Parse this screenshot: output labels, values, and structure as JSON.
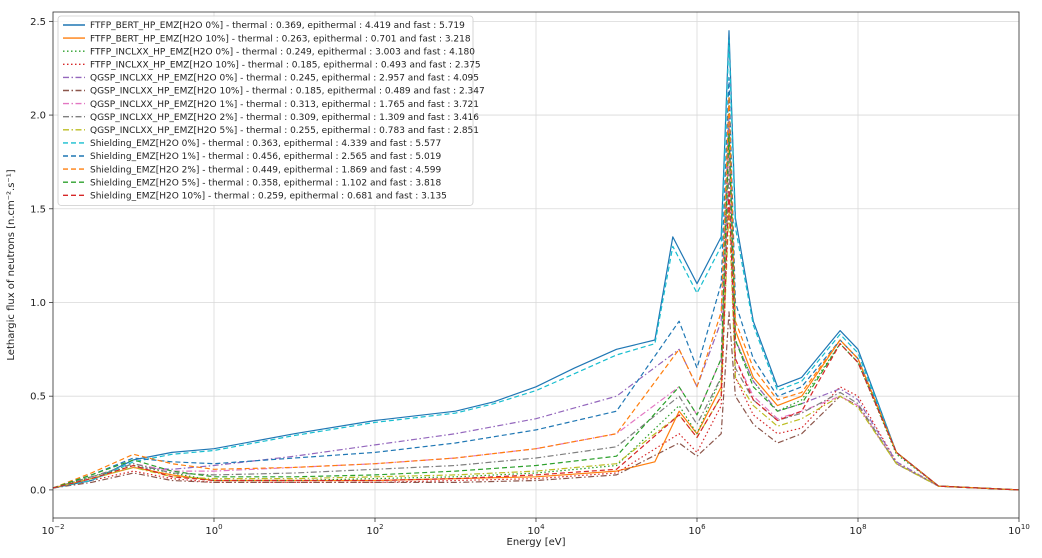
{
  "chart_data": {
    "type": "line",
    "xlabel": "Energy [eV]",
    "ylabel": "Lethargic flux of neutrons [n.cm⁻².s⁻¹]",
    "xscale": "log",
    "xlim": [
      0.01,
      10000000000
    ],
    "ylim": [
      -0.15,
      2.55
    ],
    "grid": true,
    "legend_position": "top-left",
    "x_ticks": [
      {
        "value": 0.01,
        "base": "10",
        "exp": "−2"
      },
      {
        "value": 1,
        "base": "10",
        "exp": "0"
      },
      {
        "value": 100,
        "base": "10",
        "exp": "2"
      },
      {
        "value": 10000,
        "base": "10",
        "exp": "4"
      },
      {
        "value": 1000000,
        "base": "10",
        "exp": "6"
      },
      {
        "value": 100000000,
        "base": "10",
        "exp": "8"
      },
      {
        "value": 10000000000,
        "base": "10",
        "exp": "10"
      }
    ],
    "y_ticks": [
      {
        "value": 0.0,
        "label": "0.0"
      },
      {
        "value": 0.5,
        "label": "0.5"
      },
      {
        "value": 1.0,
        "label": "1.0"
      },
      {
        "value": 1.5,
        "label": "1.5"
      },
      {
        "value": 2.0,
        "label": "2.0"
      },
      {
        "value": 2.5,
        "label": "2.5"
      }
    ],
    "series": [
      {
        "name": "FTFP_BERT_HP_EMZ[H2O 0%] - thermal : 0.369, epithermal : 4.419 and fast : 5.719",
        "color": "#1f77b4",
        "dash": "solid",
        "x": [
          0.01,
          0.03,
          0.1,
          0.3,
          1,
          10,
          100,
          1000,
          3000,
          10000,
          30000,
          100000,
          300000,
          500000,
          1000000,
          2000000,
          2500000,
          3000000,
          5000000,
          10000000,
          20000000,
          60000000,
          100000000,
          300000000,
          1000000000,
          10000000000
        ],
        "y": [
          0.01,
          0.05,
          0.16,
          0.2,
          0.22,
          0.3,
          0.37,
          0.42,
          0.47,
          0.55,
          0.65,
          0.75,
          0.8,
          1.35,
          1.1,
          1.35,
          2.45,
          1.45,
          0.9,
          0.55,
          0.6,
          0.85,
          0.75,
          0.2,
          0.02,
          0.0
        ]
      },
      {
        "name": "FTFP_BERT_HP_EMZ[H2O 10%] - thermal : 0.263, epithermal : 0.701 and fast : 3.218",
        "color": "#ff7f0e",
        "dash": "solid",
        "x": [
          0.01,
          0.03,
          0.1,
          0.3,
          1,
          10,
          100,
          1000,
          10000,
          100000,
          300000,
          600000,
          1000000,
          2000000,
          2500000,
          3000000,
          5000000,
          10000000,
          20000000,
          60000000,
          100000000,
          300000000,
          1000000000,
          10000000000
        ],
        "y": [
          0.01,
          0.06,
          0.12,
          0.08,
          0.05,
          0.05,
          0.05,
          0.06,
          0.07,
          0.1,
          0.15,
          0.42,
          0.3,
          0.55,
          1.95,
          0.85,
          0.6,
          0.45,
          0.5,
          0.8,
          0.7,
          0.2,
          0.02,
          0.0
        ]
      },
      {
        "name": "FTFP_INCLXX_HP_EMZ[H2O 0%] - thermal : 0.249, epithermal : 3.003 and fast : 4.180",
        "color": "#2ca02c",
        "dash": "dotted",
        "x": [
          0.01,
          0.03,
          0.1,
          0.3,
          1,
          10,
          100,
          1000,
          10000,
          100000,
          600000,
          1000000,
          2000000,
          2500000,
          3000000,
          5000000,
          10000000,
          20000000,
          60000000,
          100000000,
          300000000,
          1000000000,
          10000000000
        ],
        "y": [
          0.01,
          0.07,
          0.13,
          0.09,
          0.05,
          0.05,
          0.06,
          0.07,
          0.09,
          0.13,
          0.45,
          0.3,
          0.6,
          2.1,
          0.8,
          0.58,
          0.42,
          0.48,
          0.78,
          0.68,
          0.19,
          0.02,
          0.0
        ]
      },
      {
        "name": "FTFP_INCLXX_HP_EMZ[H2O 10%] - thermal : 0.185, epithermal : 0.493 and fast : 2.375",
        "color": "#d62728",
        "dash": "dotted",
        "x": [
          0.01,
          0.03,
          0.1,
          0.3,
          1,
          10,
          100,
          1000,
          10000,
          100000,
          600000,
          1000000,
          2000000,
          2500000,
          3000000,
          5000000,
          10000000,
          20000000,
          60000000,
          100000000,
          300000000,
          1000000000,
          10000000000
        ],
        "y": [
          0.01,
          0.05,
          0.1,
          0.06,
          0.04,
          0.04,
          0.04,
          0.05,
          0.06,
          0.09,
          0.3,
          0.2,
          0.45,
          1.6,
          0.6,
          0.4,
          0.3,
          0.33,
          0.55,
          0.5,
          0.15,
          0.02,
          0.0
        ]
      },
      {
        "name": "QGSP_INCLXX_HP_EMZ[H2O 0%] - thermal : 0.245, epithermal : 2.957 and fast : 4.095",
        "color": "#9467bd",
        "dash": "dashdot",
        "x": [
          0.01,
          0.03,
          0.1,
          0.3,
          1,
          10,
          100,
          1000,
          10000,
          100000,
          600000,
          1000000,
          2000000,
          2500000,
          3000000,
          5000000,
          10000000,
          20000000,
          60000000,
          100000000,
          300000000,
          1000000000,
          10000000000
        ],
        "y": [
          0.01,
          0.06,
          0.12,
          0.11,
          0.13,
          0.18,
          0.24,
          0.3,
          0.38,
          0.5,
          0.75,
          0.55,
          0.9,
          2.0,
          0.8,
          0.58,
          0.42,
          0.46,
          0.54,
          0.48,
          0.15,
          0.02,
          0.0
        ]
      },
      {
        "name": "QGSP_INCLXX_HP_EMZ[H2O 10%] - thermal : 0.185, epithermal : 0.489 and fast : 2.347",
        "color": "#8c564b",
        "dash": "dashdot",
        "x": [
          0.01,
          0.03,
          0.1,
          0.3,
          1,
          10,
          100,
          1000,
          10000,
          100000,
          600000,
          1000000,
          2000000,
          2500000,
          3000000,
          5000000,
          10000000,
          20000000,
          60000000,
          100000000,
          300000000,
          1000000000,
          10000000000
        ],
        "y": [
          0.01,
          0.04,
          0.09,
          0.05,
          0.04,
          0.04,
          0.04,
          0.04,
          0.05,
          0.08,
          0.25,
          0.18,
          0.3,
          0.95,
          0.5,
          0.35,
          0.25,
          0.3,
          0.5,
          0.45,
          0.14,
          0.02,
          0.0
        ]
      },
      {
        "name": "QGSP_INCLXX_HP_EMZ[H2O 1%] - thermal : 0.313, epithermal : 1.765 and fast : 3.721",
        "color": "#e377c2",
        "dash": "dashdot",
        "x": [
          0.01,
          0.03,
          0.1,
          0.3,
          1,
          10,
          100,
          1000,
          10000,
          100000,
          600000,
          1000000,
          2000000,
          2500000,
          3000000,
          5000000,
          10000000,
          20000000,
          60000000,
          100000000,
          300000000,
          1000000000,
          10000000000
        ],
        "y": [
          0.01,
          0.07,
          0.14,
          0.1,
          0.1,
          0.12,
          0.14,
          0.17,
          0.22,
          0.3,
          0.55,
          0.4,
          0.7,
          1.8,
          0.7,
          0.5,
          0.38,
          0.42,
          0.5,
          0.45,
          0.14,
          0.02,
          0.0
        ]
      },
      {
        "name": "QGSP_INCLXX_HP_EMZ[H2O 2%] - thermal : 0.309, epithermal : 1.309 and fast : 3.416",
        "color": "#7f7f7f",
        "dash": "dashdot",
        "x": [
          0.01,
          0.03,
          0.1,
          0.3,
          1,
          10,
          100,
          1000,
          10000,
          100000,
          600000,
          1000000,
          2000000,
          2500000,
          3000000,
          5000000,
          10000000,
          20000000,
          60000000,
          100000000,
          300000000,
          1000000000,
          10000000000
        ],
        "y": [
          0.01,
          0.07,
          0.14,
          0.09,
          0.08,
          0.09,
          0.11,
          0.13,
          0.17,
          0.23,
          0.5,
          0.35,
          0.6,
          1.7,
          0.65,
          0.48,
          0.37,
          0.41,
          0.52,
          0.46,
          0.14,
          0.02,
          0.0
        ]
      },
      {
        "name": "QGSP_INCLXX_HP_EMZ[H2O 5%] - thermal : 0.255, epithermal : 0.783 and fast : 2.851",
        "color": "#bcbd22",
        "dash": "dashdot",
        "x": [
          0.01,
          0.03,
          0.1,
          0.3,
          1,
          10,
          100,
          1000,
          10000,
          100000,
          600000,
          1000000,
          2000000,
          2500000,
          3000000,
          5000000,
          10000000,
          20000000,
          60000000,
          100000000,
          300000000,
          1000000000,
          10000000000
        ],
        "y": [
          0.01,
          0.06,
          0.12,
          0.07,
          0.06,
          0.06,
          0.07,
          0.08,
          0.1,
          0.14,
          0.4,
          0.28,
          0.5,
          1.5,
          0.6,
          0.45,
          0.34,
          0.38,
          0.5,
          0.44,
          0.14,
          0.02,
          0.0
        ]
      },
      {
        "name": "Shielding_EMZ[H2O 0%] - thermal : 0.363, epithermal : 4.339 and fast : 5.577",
        "color": "#17becf",
        "dash": "dashed",
        "x": [
          0.01,
          0.03,
          0.1,
          0.3,
          1,
          10,
          100,
          1000,
          3000,
          10000,
          30000,
          100000,
          300000,
          500000,
          1000000,
          2000000,
          2500000,
          3000000,
          5000000,
          10000000,
          20000000,
          60000000,
          100000000,
          300000000,
          1000000000,
          10000000000
        ],
        "y": [
          0.01,
          0.05,
          0.15,
          0.19,
          0.21,
          0.29,
          0.36,
          0.41,
          0.46,
          0.53,
          0.62,
          0.72,
          0.78,
          1.3,
          1.05,
          1.3,
          2.4,
          1.4,
          0.88,
          0.53,
          0.58,
          0.83,
          0.73,
          0.2,
          0.02,
          0.0
        ]
      },
      {
        "name": "Shielding_EMZ[H2O 1%] - thermal : 0.456, epithermal : 2.565 and fast : 5.019",
        "color": "#1f77b4",
        "dash": "dashed",
        "x": [
          0.01,
          0.03,
          0.1,
          0.3,
          1,
          10,
          100,
          1000,
          10000,
          100000,
          600000,
          1000000,
          2000000,
          2500000,
          3000000,
          5000000,
          10000000,
          20000000,
          60000000,
          100000000,
          300000000,
          1000000000,
          10000000000
        ],
        "y": [
          0.01,
          0.08,
          0.17,
          0.15,
          0.14,
          0.17,
          0.2,
          0.25,
          0.32,
          0.42,
          0.9,
          0.65,
          1.1,
          2.2,
          1.0,
          0.7,
          0.5,
          0.55,
          0.8,
          0.7,
          0.2,
          0.02,
          0.0
        ]
      },
      {
        "name": "Shielding_EMZ[H2O 2%] - thermal : 0.449, epithermal : 1.869 and fast : 4.599",
        "color": "#ff7f0e",
        "dash": "dashed",
        "x": [
          0.01,
          0.03,
          0.1,
          0.3,
          1,
          10,
          100,
          1000,
          10000,
          100000,
          600000,
          1000000,
          2000000,
          2500000,
          3000000,
          5000000,
          10000000,
          20000000,
          60000000,
          100000000,
          300000000,
          1000000000,
          10000000000
        ],
        "y": [
          0.01,
          0.09,
          0.19,
          0.14,
          0.11,
          0.12,
          0.14,
          0.17,
          0.22,
          0.3,
          0.75,
          0.55,
          0.95,
          2.1,
          0.9,
          0.65,
          0.48,
          0.52,
          0.8,
          0.7,
          0.2,
          0.02,
          0.0
        ]
      },
      {
        "name": "Shielding_EMZ[H2O 5%] - thermal : 0.358, epithermal : 1.102 and fast : 3.818",
        "color": "#2ca02c",
        "dash": "dashed",
        "x": [
          0.01,
          0.03,
          0.1,
          0.3,
          1,
          10,
          100,
          1000,
          10000,
          100000,
          600000,
          1000000,
          2000000,
          2500000,
          3000000,
          5000000,
          10000000,
          20000000,
          60000000,
          100000000,
          300000000,
          1000000000,
          10000000000
        ],
        "y": [
          0.01,
          0.08,
          0.16,
          0.1,
          0.07,
          0.07,
          0.08,
          0.1,
          0.13,
          0.18,
          0.55,
          0.4,
          0.7,
          1.9,
          0.8,
          0.55,
          0.42,
          0.46,
          0.78,
          0.68,
          0.2,
          0.02,
          0.0
        ]
      },
      {
        "name": "Shielding_EMZ[H2O 10%] - thermal : 0.259, epithermal : 0.681 and fast : 3.135",
        "color": "#d62728",
        "dash": "dashed",
        "x": [
          0.01,
          0.03,
          0.1,
          0.3,
          1,
          10,
          100,
          1000,
          10000,
          100000,
          600000,
          1000000,
          2000000,
          2500000,
          3000000,
          5000000,
          10000000,
          20000000,
          60000000,
          100000000,
          300000000,
          1000000000,
          10000000000
        ],
        "y": [
          0.01,
          0.06,
          0.13,
          0.07,
          0.05,
          0.05,
          0.05,
          0.06,
          0.08,
          0.11,
          0.4,
          0.28,
          0.5,
          1.6,
          0.7,
          0.48,
          0.37,
          0.42,
          0.78,
          0.68,
          0.2,
          0.02,
          0.0
        ]
      }
    ]
  }
}
